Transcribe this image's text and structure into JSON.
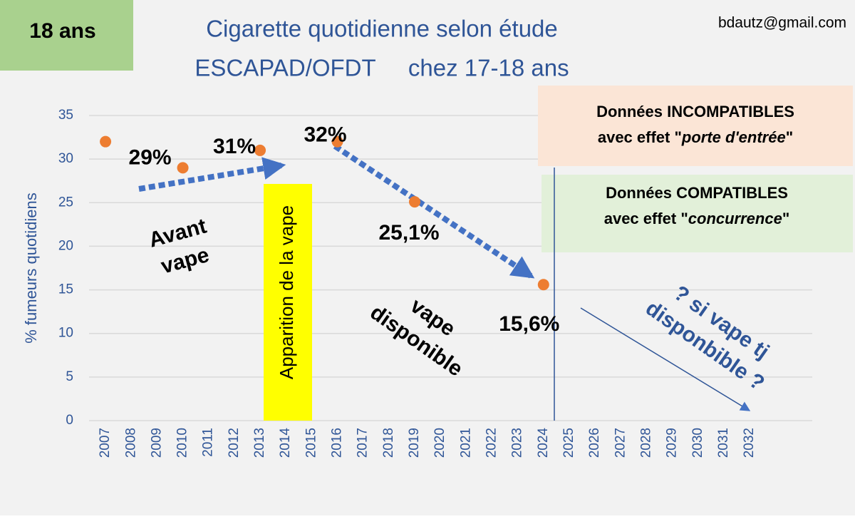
{
  "chart_data": {
    "type": "scatter",
    "title": "Cigarette quotidienne selon étude",
    "subtitle": "ESCAPAD/OFDT     chez 17-18 ans",
    "y_label": "% fumeurs quotidiens",
    "categories": [
      "2007",
      "2008",
      "2009",
      "2010",
      "2011",
      "2012",
      "2013",
      "2014",
      "2015",
      "2016",
      "2017",
      "2018",
      "2019",
      "2020",
      "2021",
      "2022",
      "2023",
      "2024",
      "2025",
      "2026",
      "2027",
      "2028",
      "2029",
      "2030",
      "2031",
      "2032"
    ],
    "values": [
      32,
      null,
      null,
      29,
      null,
      null,
      31,
      null,
      null,
      32,
      null,
      null,
      25.1,
      null,
      null,
      null,
      null,
      15.6,
      null,
      null,
      null,
      null,
      null,
      null,
      null,
      null
    ],
    "value_labels": [
      null,
      null,
      null,
      "29%",
      null,
      null,
      "31%",
      null,
      null,
      "32%",
      null,
      null,
      "25,1%",
      null,
      null,
      null,
      null,
      "15,6%",
      null,
      null,
      null,
      null,
      null,
      null,
      null,
      null
    ],
    "color": "#ed7d31",
    "ylim": [
      0,
      35
    ],
    "yticks": [
      0,
      5,
      10,
      15,
      20,
      25,
      30,
      35
    ],
    "grid": true,
    "annotations": {
      "badge": "18 ans",
      "credit": "bdautz@gmail.com",
      "before": [
        "Avant",
        "vape"
      ],
      "event": "Apparition de la vape",
      "after": [
        "vape",
        "disponible"
      ],
      "question": [
        "? si vape tj",
        "disponbible ?"
      ],
      "incompatible_box": [
        [
          "Données INCOMPATIBLES"
        ],
        [
          "avec effet \"",
          "porte d'entrée",
          "\""
        ]
      ],
      "compatible_box": [
        [
          "Données COMPATIBLES"
        ],
        [
          "avec effet \"",
          "concurrence",
          "\""
        ]
      ]
    }
  }
}
